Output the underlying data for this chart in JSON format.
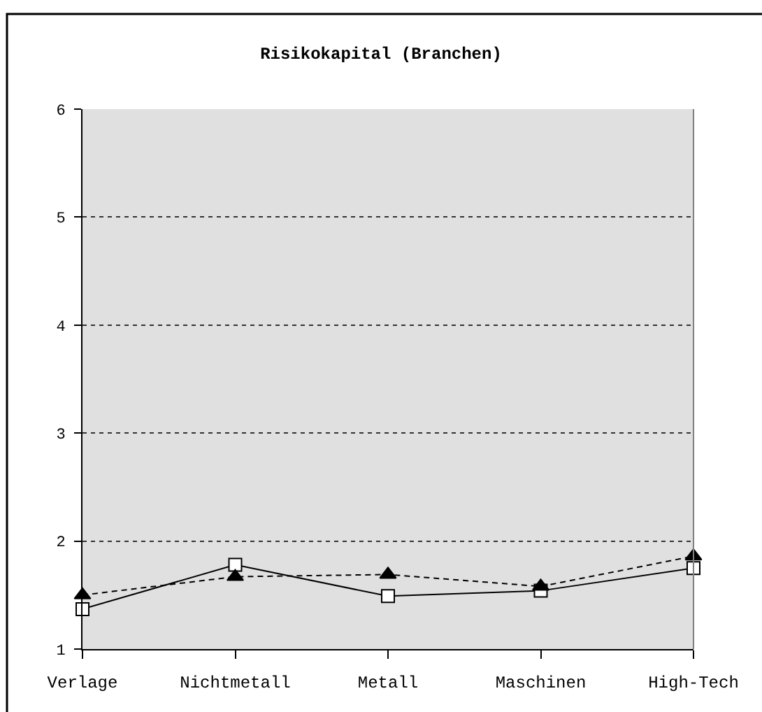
{
  "chart_data": {
    "type": "line",
    "title": "Risikokapital (Branchen)",
    "categories": [
      "Verlage",
      "Nichtmetall",
      "Metall",
      "Maschinen",
      "High-Tech"
    ],
    "series": [
      {
        "color": "#000000",
        "marker": "square",
        "line_style": "solid",
        "values": [
          1.37,
          1.78,
          1.49,
          1.54,
          1.75
        ]
      },
      {
        "color": "#000000",
        "marker": "triangle",
        "line_style": "dashed",
        "values": [
          1.5,
          1.67,
          1.69,
          1.58,
          1.86
        ]
      }
    ],
    "ylim": [
      1,
      6
    ],
    "yticks": [
      1,
      2,
      3,
      4,
      5,
      6
    ],
    "grid": "y"
  }
}
